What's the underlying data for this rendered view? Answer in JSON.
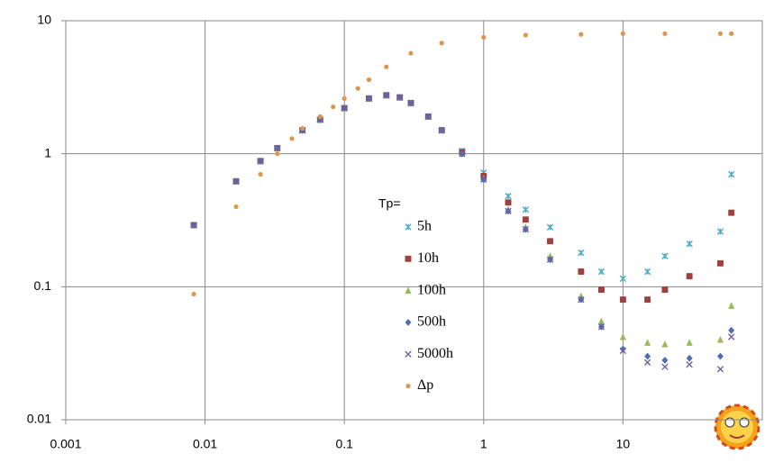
{
  "chart_data": {
    "type": "scatter",
    "log_x": true,
    "log_y": true,
    "grid": true,
    "xlim": [
      0.001,
      100
    ],
    "xticks": [
      0.001,
      0.01,
      0.1,
      1,
      10
    ],
    "ylim": [
      0.01,
      10
    ],
    "yticks": [
      0.01,
      0.1,
      1,
      10
    ],
    "legend_title": "Tp=",
    "legend_position": "center",
    "series": [
      {
        "name": "5h",
        "color": "#4bacc6",
        "marker": "star",
        "x": [
          0.0083,
          0.0167,
          0.025,
          0.033,
          0.05,
          0.067,
          0.1,
          0.15,
          0.2,
          0.25,
          0.3,
          0.4,
          0.5,
          0.7,
          1,
          1.5,
          2,
          3,
          5,
          7,
          10,
          15,
          20,
          30,
          50,
          60
        ],
        "values": [
          0.29,
          0.62,
          0.88,
          1.1,
          1.5,
          1.8,
          2.2,
          2.6,
          2.75,
          2.65,
          2.4,
          1.9,
          1.5,
          1.05,
          0.72,
          0.48,
          0.38,
          0.28,
          0.18,
          0.13,
          0.115,
          0.13,
          0.17,
          0.21,
          0.26,
          0.7
        ]
      },
      {
        "name": "10h",
        "color": "#a0403e",
        "marker": "square",
        "x": [
          0.0083,
          0.0167,
          0.025,
          0.033,
          0.05,
          0.067,
          0.1,
          0.15,
          0.2,
          0.25,
          0.3,
          0.4,
          0.5,
          0.7,
          1,
          1.5,
          2,
          3,
          5,
          7,
          10,
          15,
          20,
          30,
          50,
          60
        ],
        "values": [
          0.29,
          0.62,
          0.88,
          1.1,
          1.5,
          1.8,
          2.2,
          2.6,
          2.75,
          2.65,
          2.4,
          1.9,
          1.5,
          1.03,
          0.68,
          0.43,
          0.32,
          0.22,
          0.13,
          0.095,
          0.08,
          0.08,
          0.095,
          0.12,
          0.15,
          0.36
        ]
      },
      {
        "name": "100h",
        "color": "#9bbb59",
        "marker": "triangle",
        "x": [
          0.0083,
          0.0167,
          0.025,
          0.033,
          0.05,
          0.067,
          0.1,
          0.15,
          0.2,
          0.25,
          0.3,
          0.4,
          0.5,
          0.7,
          1,
          1.5,
          2,
          3,
          5,
          7,
          10,
          15,
          20,
          30,
          50,
          60
        ],
        "values": [
          0.29,
          0.62,
          0.88,
          1.1,
          1.5,
          1.8,
          2.2,
          2.6,
          2.75,
          2.65,
          2.4,
          1.9,
          1.5,
          1.0,
          0.65,
          0.38,
          0.28,
          0.17,
          0.085,
          0.055,
          0.042,
          0.038,
          0.037,
          0.038,
          0.04,
          0.072
        ]
      },
      {
        "name": "500h",
        "color": "#4f6fb0",
        "marker": "diamond",
        "x": [
          0.0083,
          0.0167,
          0.025,
          0.033,
          0.05,
          0.067,
          0.1,
          0.15,
          0.2,
          0.25,
          0.3,
          0.4,
          0.5,
          0.7,
          1,
          1.5,
          2,
          3,
          5,
          7,
          10,
          15,
          20,
          30,
          50,
          60
        ],
        "values": [
          0.29,
          0.62,
          0.88,
          1.1,
          1.5,
          1.8,
          2.2,
          2.6,
          2.75,
          2.65,
          2.4,
          1.9,
          1.5,
          1.0,
          0.64,
          0.37,
          0.27,
          0.16,
          0.08,
          0.05,
          0.034,
          0.03,
          0.028,
          0.029,
          0.03,
          0.047
        ]
      },
      {
        "name": "5000h",
        "color": "#7060a0",
        "marker": "x",
        "x": [
          0.0083,
          0.0167,
          0.025,
          0.033,
          0.05,
          0.067,
          0.1,
          0.15,
          0.2,
          0.25,
          0.3,
          0.4,
          0.5,
          0.7,
          1,
          1.5,
          2,
          3,
          5,
          7,
          10,
          15,
          20,
          30,
          50,
          60
        ],
        "values": [
          0.29,
          0.62,
          0.88,
          1.1,
          1.5,
          1.8,
          2.2,
          2.6,
          2.75,
          2.65,
          2.4,
          1.9,
          1.5,
          1.0,
          0.64,
          0.37,
          0.27,
          0.16,
          0.08,
          0.05,
          0.033,
          0.027,
          0.025,
          0.026,
          0.024,
          0.042
        ]
      },
      {
        "name": "Δp",
        "color": "#e0954f",
        "marker": "circle",
        "x": [
          0.0083,
          0.0167,
          0.025,
          0.033,
          0.042,
          0.05,
          0.067,
          0.083,
          0.1,
          0.125,
          0.15,
          0.2,
          0.3,
          0.5,
          1,
          2,
          5,
          10,
          20,
          50,
          60
        ],
        "values": [
          0.088,
          0.4,
          0.7,
          1.0,
          1.3,
          1.55,
          1.9,
          2.25,
          2.6,
          3.1,
          3.6,
          4.5,
          5.7,
          6.8,
          7.5,
          7.8,
          7.9,
          8.0,
          8.0,
          8.0,
          8.0
        ]
      }
    ]
  }
}
